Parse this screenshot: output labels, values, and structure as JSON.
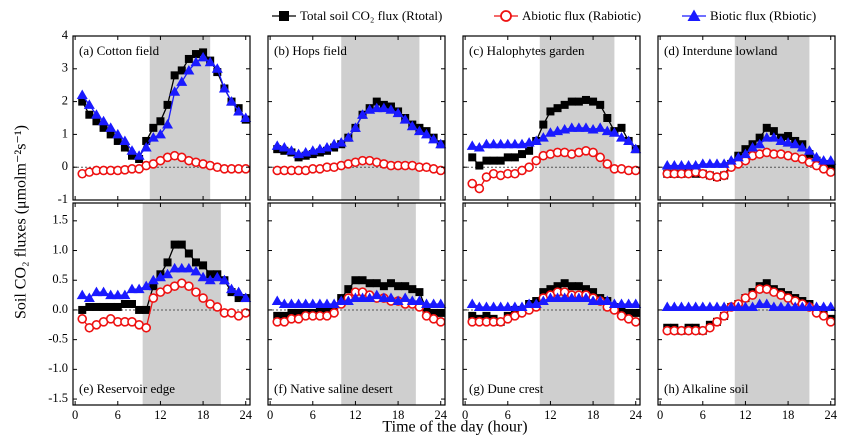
{
  "x_label": "Time of the day (hour)",
  "y_label": "Soil CO₂ fluxes (μmolm⁻²s⁻¹)",
  "chart_data": [
    {
      "type": "line",
      "title": "(a) Cotton field",
      "label_corner": "top-left",
      "shaded_xrange": [
        10.5,
        19
      ],
      "zero_line": true,
      "x": [
        1,
        2,
        3,
        4,
        5,
        6,
        7,
        8,
        9,
        10,
        11,
        12,
        13,
        14,
        15,
        16,
        17,
        18,
        19,
        20,
        21,
        22,
        23,
        24
      ],
      "xlim": [
        -0.3,
        24.6
      ],
      "xticks": [
        0,
        6,
        12,
        18,
        24
      ],
      "ylim": [
        -1,
        4
      ],
      "yticks": [
        -1,
        0,
        1,
        2,
        3,
        4
      ],
      "series": [
        {
          "name": "Total soil CO₂ flux (Rtotal)",
          "color": "#000000",
          "marker": "square",
          "values": [
            2.0,
            1.6,
            1.4,
            1.2,
            1.0,
            0.8,
            0.6,
            0.35,
            0.25,
            0.8,
            1.2,
            1.4,
            1.9,
            2.8,
            2.95,
            3.3,
            3.45,
            3.5,
            3.25,
            2.9,
            2.4,
            2.0,
            1.8,
            1.45
          ]
        },
        {
          "name": "Abiotic flux (Rabiotic)",
          "color": "#ee1111",
          "marker": "circle",
          "values": [
            -0.2,
            -0.15,
            -0.1,
            -0.1,
            -0.1,
            -0.1,
            -0.08,
            -0.05,
            -0.05,
            0.05,
            0.1,
            0.2,
            0.3,
            0.35,
            0.3,
            0.2,
            0.15,
            0.1,
            0.05,
            0.0,
            -0.05,
            -0.05,
            -0.05,
            -0.05
          ]
        },
        {
          "name": "Biotic flux (Rbiotic)",
          "color": "#1a1aff",
          "marker": "triangle",
          "values": [
            2.2,
            1.9,
            1.6,
            1.4,
            1.2,
            1.0,
            0.8,
            0.5,
            0.35,
            0.6,
            0.9,
            1.0,
            1.3,
            2.3,
            2.6,
            2.95,
            3.2,
            3.35,
            3.2,
            3.0,
            2.4,
            2.0,
            1.7,
            1.5
          ]
        }
      ]
    },
    {
      "type": "line",
      "title": "(b) Hops field",
      "label_corner": "top-left",
      "shaded_xrange": [
        10,
        21
      ],
      "zero_line": true,
      "x": [
        1,
        2,
        3,
        4,
        5,
        6,
        7,
        8,
        9,
        10,
        11,
        12,
        13,
        14,
        15,
        16,
        17,
        18,
        19,
        20,
        21,
        22,
        23,
        24
      ],
      "xlim": [
        -0.3,
        24.6
      ],
      "xticks": [
        0,
        6,
        12,
        18,
        24
      ],
      "ylim": [
        -1,
        4
      ],
      "yticks": [
        -1,
        0,
        1,
        2,
        3,
        4
      ],
      "series": [
        {
          "color": "#000000",
          "marker": "square",
          "values": [
            0.55,
            0.5,
            0.45,
            0.3,
            0.35,
            0.4,
            0.45,
            0.5,
            0.6,
            0.7,
            0.9,
            1.2,
            1.6,
            1.8,
            2.0,
            1.9,
            1.85,
            1.7,
            1.5,
            1.3,
            1.2,
            1.1,
            0.9,
            0.7
          ]
        },
        {
          "color": "#ee1111",
          "marker": "circle",
          "values": [
            -0.1,
            -0.1,
            -0.1,
            -0.1,
            -0.1,
            -0.05,
            -0.05,
            0,
            0,
            0.05,
            0.1,
            0.15,
            0.2,
            0.2,
            0.15,
            0.1,
            0.05,
            0.05,
            0.05,
            0.05,
            0,
            0,
            -0.05,
            -0.1
          ]
        },
        {
          "color": "#1a1aff",
          "marker": "triangle",
          "values": [
            0.65,
            0.6,
            0.5,
            0.4,
            0.45,
            0.5,
            0.55,
            0.6,
            0.7,
            0.75,
            0.9,
            1.2,
            1.6,
            1.75,
            1.8,
            1.8,
            1.75,
            1.65,
            1.45,
            1.25,
            1.1,
            1.0,
            0.85,
            0.7
          ]
        }
      ]
    },
    {
      "type": "line",
      "title": "(c) Halophytes garden",
      "label_corner": "top-left",
      "shaded_xrange": [
        10.5,
        21
      ],
      "zero_line": true,
      "x": [
        1,
        2,
        3,
        4,
        5,
        6,
        7,
        8,
        9,
        10,
        11,
        12,
        13,
        14,
        15,
        16,
        17,
        18,
        19,
        20,
        21,
        22,
        23,
        24
      ],
      "xlim": [
        -0.3,
        24.6
      ],
      "xticks": [
        0,
        6,
        12,
        18,
        24
      ],
      "ylim": [
        -1,
        4
      ],
      "yticks": [
        -1,
        0,
        1,
        2,
        3,
        4
      ],
      "series": [
        {
          "color": "#000000",
          "marker": "square",
          "values": [
            0.3,
            0.05,
            0.2,
            0.2,
            0.2,
            0.3,
            0.3,
            0.4,
            0.5,
            0.8,
            1.3,
            1.7,
            1.8,
            1.9,
            2.0,
            2.0,
            2.05,
            2.0,
            1.9,
            1.5,
            1.1,
            1.2,
            0.8,
            0.55
          ]
        },
        {
          "color": "#ee1111",
          "marker": "circle",
          "values": [
            -0.5,
            -0.65,
            -0.3,
            -0.2,
            -0.25,
            -0.2,
            -0.2,
            -0.1,
            0,
            0.2,
            0.35,
            0.4,
            0.45,
            0.45,
            0.4,
            0.45,
            0.5,
            0.45,
            0.3,
            0.1,
            -0.05,
            -0.05,
            -0.1,
            -0.1
          ]
        },
        {
          "color": "#1a1aff",
          "marker": "triangle",
          "values": [
            0.65,
            0.6,
            0.7,
            0.7,
            0.7,
            0.7,
            0.7,
            0.7,
            0.75,
            0.8,
            0.9,
            1.05,
            1.1,
            1.15,
            1.2,
            1.2,
            1.2,
            1.15,
            1.2,
            1.1,
            1.05,
            0.9,
            0.8,
            0.55
          ]
        }
      ]
    },
    {
      "type": "line",
      "title": "(d) Interdune lowland",
      "label_corner": "top-left",
      "shaded_xrange": [
        10.5,
        21
      ],
      "zero_line": true,
      "x": [
        1,
        2,
        3,
        4,
        5,
        6,
        7,
        8,
        9,
        10,
        11,
        12,
        13,
        14,
        15,
        16,
        17,
        18,
        19,
        20,
        21,
        22,
        23,
        24
      ],
      "xlim": [
        -0.3,
        24.6
      ],
      "xticks": [
        0,
        6,
        12,
        18,
        24
      ],
      "ylim": [
        -1,
        4
      ],
      "yticks": [
        -1,
        0,
        1,
        2,
        3,
        4
      ],
      "series": [
        {
          "color": "#000000",
          "marker": "square",
          "values": [
            -0.2,
            -0.2,
            -0.2,
            -0.15,
            -0.2,
            -0.2,
            -0.25,
            -0.3,
            -0.25,
            0.1,
            0.35,
            0.55,
            0.7,
            0.9,
            1.2,
            1.1,
            0.9,
            0.95,
            0.8,
            0.7,
            0.4,
            0.2,
            0.1,
            0.0
          ]
        },
        {
          "color": "#ee1111",
          "marker": "circle",
          "values": [
            -0.2,
            -0.2,
            -0.2,
            -0.2,
            -0.15,
            -0.2,
            -0.25,
            -0.3,
            -0.25,
            0,
            0.1,
            0.2,
            0.35,
            0.4,
            0.45,
            0.4,
            0.4,
            0.35,
            0.3,
            0.25,
            0.15,
            0.05,
            -0.05,
            -0.15
          ]
        },
        {
          "color": "#1a1aff",
          "marker": "triangle",
          "values": [
            0.05,
            0.05,
            0.05,
            0.05,
            0.05,
            0.1,
            0.1,
            0.1,
            0.1,
            0.2,
            0.3,
            0.4,
            0.6,
            0.7,
            0.9,
            0.9,
            0.8,
            0.75,
            0.7,
            0.6,
            0.5,
            0.3,
            0.2,
            0.2
          ]
        }
      ]
    },
    {
      "type": "line",
      "title": "(e) Reservoir edge",
      "label_corner": "bottom-left",
      "shaded_xrange": [
        9.5,
        20.5
      ],
      "zero_line": true,
      "x": [
        1,
        2,
        3,
        4,
        5,
        6,
        7,
        8,
        9,
        10,
        11,
        12,
        13,
        14,
        15,
        16,
        17,
        18,
        19,
        20,
        21,
        22,
        23,
        24
      ],
      "xlim": [
        -0.3,
        24.6
      ],
      "xticks": [
        0,
        6,
        12,
        18,
        24
      ],
      "ylim": [
        -1.6,
        1.8
      ],
      "yticks": [
        -1.5,
        {
          "value": -1.0,
          "label": "-1.0"
        },
        -0.5,
        {
          "value": 0,
          "label": "0.0"
        },
        0.5,
        {
          "value": 1.0,
          "label": "1.0"
        },
        1.5
      ],
      "series": [
        {
          "color": "#000000",
          "marker": "square",
          "values": [
            0.0,
            0.05,
            0.05,
            0.05,
            0.05,
            0.05,
            0.1,
            0.1,
            0.0,
            0.0,
            0.4,
            0.6,
            0.8,
            1.1,
            1.1,
            0.95,
            0.8,
            0.75,
            0.6,
            0.6,
            0.5,
            0.3,
            0.2,
            0.2
          ]
        },
        {
          "color": "#ee1111",
          "marker": "circle",
          "values": [
            -0.15,
            -0.3,
            -0.25,
            -0.2,
            -0.15,
            -0.2,
            -0.2,
            -0.2,
            -0.25,
            -0.3,
            0.2,
            0.3,
            0.35,
            0.4,
            0.45,
            0.4,
            0.3,
            0.2,
            0.1,
            0.05,
            -0.05,
            -0.05,
            -0.1,
            -0.05
          ]
        },
        {
          "color": "#1a1aff",
          "marker": "triangle",
          "values": [
            0.25,
            0.2,
            0.3,
            0.3,
            0.25,
            0.25,
            0.25,
            0.35,
            0.35,
            0.4,
            0.5,
            0.55,
            0.6,
            0.7,
            0.7,
            0.7,
            0.65,
            0.55,
            0.5,
            0.55,
            0.5,
            0.35,
            0.3,
            0.2
          ]
        }
      ]
    },
    {
      "type": "line",
      "title": "(f) Native saline desert",
      "label_corner": "bottom-left",
      "shaded_xrange": [
        10,
        20.5
      ],
      "zero_line": true,
      "x": [
        1,
        2,
        3,
        4,
        5,
        6,
        7,
        8,
        9,
        10,
        11,
        12,
        13,
        14,
        15,
        16,
        17,
        18,
        19,
        20,
        21,
        22,
        23,
        24
      ],
      "xlim": [
        -0.3,
        24.6
      ],
      "xticks": [
        0,
        6,
        12,
        18,
        24
      ],
      "ylim": [
        -1.6,
        1.8
      ],
      "yticks": [
        -1.5,
        -1.0,
        -0.5,
        0,
        0.5,
        1.0,
        1.5
      ],
      "series": [
        {
          "color": "#000000",
          "marker": "square",
          "values": [
            -0.1,
            -0.1,
            -0.05,
            -0.05,
            -0.05,
            -0.05,
            0,
            0,
            0,
            0.2,
            0.35,
            0.5,
            0.5,
            0.45,
            0.45,
            0.4,
            0.45,
            0.4,
            0.4,
            0.35,
            0.3,
            0.0,
            -0.05,
            -0.05
          ]
        },
        {
          "color": "#ee1111",
          "marker": "circle",
          "values": [
            -0.2,
            -0.2,
            -0.15,
            -0.15,
            -0.1,
            -0.1,
            -0.1,
            -0.1,
            -0.05,
            0.1,
            0.2,
            0.3,
            0.3,
            0.25,
            0.2,
            0.2,
            0.15,
            0.15,
            0.1,
            0.1,
            0.05,
            -0.1,
            -0.15,
            -0.2
          ]
        },
        {
          "color": "#1a1aff",
          "marker": "triangle",
          "values": [
            0.15,
            0.1,
            0.1,
            0.1,
            0.1,
            0.1,
            0.1,
            0.1,
            0.1,
            0.15,
            0.15,
            0.2,
            0.2,
            0.2,
            0.25,
            0.2,
            0.2,
            0.15,
            0.2,
            0.15,
            0.15,
            0.1,
            0.1,
            0.1
          ]
        }
      ]
    },
    {
      "type": "line",
      "title": "(g) Dune crest",
      "label_corner": "bottom-left",
      "shaded_xrange": [
        10.5,
        21
      ],
      "zero_line": true,
      "x": [
        1,
        2,
        3,
        4,
        5,
        6,
        7,
        8,
        9,
        10,
        11,
        12,
        13,
        14,
        15,
        16,
        17,
        18,
        19,
        20,
        21,
        22,
        23,
        24
      ],
      "xlim": [
        -0.3,
        24.6
      ],
      "xticks": [
        0,
        6,
        12,
        18,
        24
      ],
      "ylim": [
        -1.6,
        1.8
      ],
      "yticks": [
        -1.5,
        -1.0,
        -0.5,
        0,
        0.5,
        1.0,
        1.5
      ],
      "series": [
        {
          "color": "#000000",
          "marker": "square",
          "values": [
            -0.1,
            -0.15,
            -0.1,
            -0.15,
            -0.2,
            -0.1,
            0,
            0,
            0.1,
            0.15,
            0.3,
            0.35,
            0.4,
            0.45,
            0.4,
            0.4,
            0.35,
            0.3,
            0.2,
            0.15,
            0.05,
            0.0,
            -0.05,
            -0.05
          ]
        },
        {
          "color": "#ee1111",
          "marker": "circle",
          "values": [
            -0.2,
            -0.2,
            -0.2,
            -0.2,
            -0.2,
            -0.15,
            -0.1,
            -0.05,
            0,
            0.05,
            0.2,
            0.25,
            0.3,
            0.3,
            0.25,
            0.25,
            0.25,
            0.2,
            0.15,
            0.05,
            0,
            -0.1,
            -0.15,
            -0.2
          ]
        },
        {
          "color": "#1a1aff",
          "marker": "triangle",
          "values": [
            0.1,
            0.05,
            0.05,
            0.05,
            0.05,
            0.05,
            0.05,
            0.05,
            0.1,
            0.1,
            0.15,
            0.2,
            0.2,
            0.2,
            0.2,
            0.2,
            0.2,
            0.15,
            0.15,
            0.15,
            0.1,
            0.1,
            0.1,
            0.1
          ]
        }
      ]
    },
    {
      "type": "line",
      "title": "(h) Alkaline soil",
      "label_corner": "bottom-left",
      "shaded_xrange": [
        10.5,
        21
      ],
      "zero_line": true,
      "x": [
        1,
        2,
        3,
        4,
        5,
        6,
        7,
        8,
        9,
        10,
        11,
        12,
        13,
        14,
        15,
        16,
        17,
        18,
        19,
        20,
        21,
        22,
        23,
        24
      ],
      "xlim": [
        -0.3,
        24.6
      ],
      "xticks": [
        0,
        6,
        12,
        18,
        24
      ],
      "ylim": [
        -1.6,
        1.8
      ],
      "yticks": [
        -1.5,
        -1.0,
        -0.5,
        0,
        0.5,
        1.0,
        1.5
      ],
      "series": [
        {
          "color": "#000000",
          "marker": "square",
          "values": [
            -0.3,
            -0.3,
            -0.35,
            -0.3,
            -0.3,
            -0.35,
            -0.25,
            -0.2,
            -0.1,
            0.05,
            0.1,
            0.2,
            0.3,
            0.4,
            0.45,
            0.35,
            0.3,
            0.25,
            0.2,
            0.15,
            0.1,
            0.0,
            -0.05,
            -0.15
          ]
        },
        {
          "color": "#ee1111",
          "marker": "circle",
          "values": [
            -0.35,
            -0.35,
            -0.35,
            -0.35,
            -0.35,
            -0.35,
            -0.3,
            -0.2,
            -0.1,
            0.05,
            0.1,
            0.2,
            0.25,
            0.35,
            0.35,
            0.3,
            0.25,
            0.2,
            0.15,
            0.1,
            0.05,
            -0.05,
            -0.1,
            -0.2
          ]
        },
        {
          "color": "#1a1aff",
          "marker": "triangle",
          "values": [
            0.05,
            0.05,
            0.05,
            0.05,
            0.05,
            0.05,
            0.05,
            0.05,
            0.05,
            0.05,
            0.05,
            0.05,
            0.05,
            0.1,
            0.1,
            0.05,
            0.05,
            0.05,
            0.05,
            0.05,
            0.05,
            0.05,
            0.05,
            0.05
          ]
        }
      ]
    }
  ]
}
